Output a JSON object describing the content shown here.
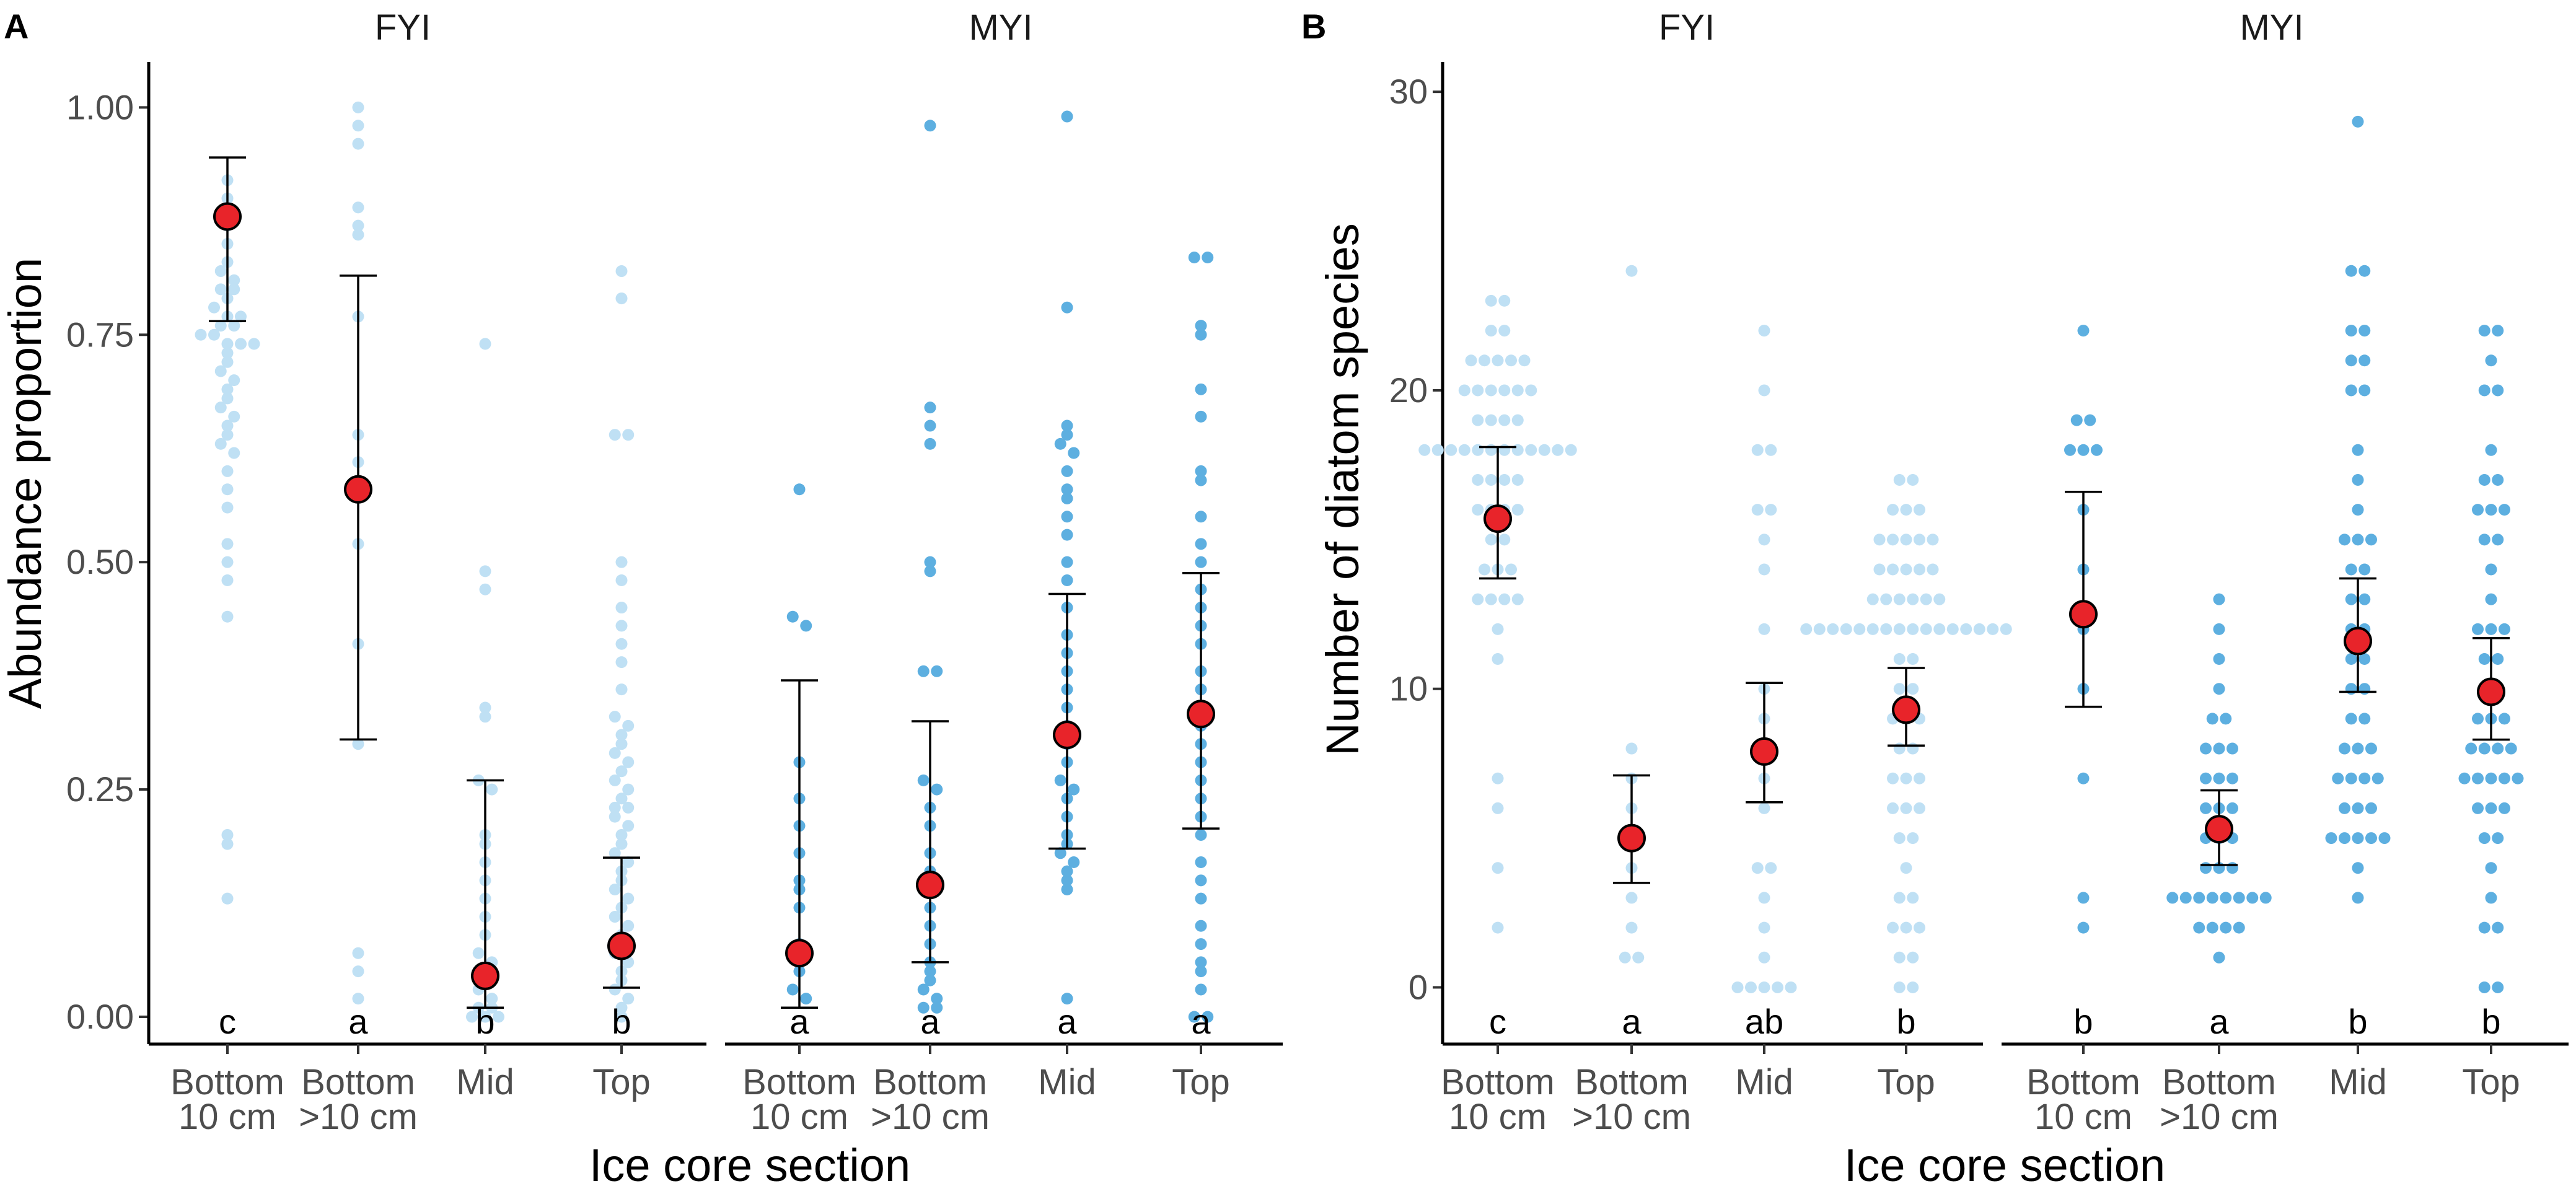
{
  "colors": {
    "fyi": "#bfe0f4",
    "myi": "#5dafe0",
    "mean": "#e8242a",
    "axis": "#000000"
  },
  "facets": [
    "FYI",
    "MYI"
  ],
  "categories": [
    "Bottom 10 cm",
    "Bottom >10 cm",
    "Mid",
    "Top"
  ],
  "category_lines": {
    "bottom10": [
      "Bottom",
      "10 cm"
    ],
    "bottom_gt10": [
      "Bottom",
      ">10 cm"
    ],
    "mid": [
      "Mid"
    ],
    "top": [
      "Top"
    ]
  },
  "xlabel": "Ice core section",
  "chart_data": [
    {
      "panel": "A",
      "type": "scatter",
      "description": "dot plot with mean ± error bars",
      "ylabel": "Abundance proportion",
      "ylim": [
        -0.03,
        1.05
      ],
      "yticks": [
        0.0,
        0.25,
        0.5,
        0.75,
        1.0
      ],
      "ytick_labels": [
        "0.00",
        "0.25",
        "0.50",
        "0.75",
        "1.00"
      ],
      "groups": [
        {
          "facet": "FYI",
          "category": "Bottom 10 cm",
          "mean": 0.88,
          "lower": 0.765,
          "upper": 0.945,
          "letter": "c",
          "points": [
            0.92,
            0.9,
            0.88,
            0.87,
            0.85,
            0.83,
            0.82,
            0.81,
            0.8,
            0.8,
            0.79,
            0.78,
            0.77,
            0.77,
            0.76,
            0.76,
            0.75,
            0.75,
            0.74,
            0.74,
            0.74,
            0.73,
            0.72,
            0.71,
            0.7,
            0.69,
            0.68,
            0.67,
            0.66,
            0.65,
            0.64,
            0.63,
            0.62,
            0.6,
            0.58,
            0.56,
            0.52,
            0.5,
            0.48,
            0.44,
            0.2,
            0.19,
            0.13
          ]
        },
        {
          "facet": "FYI",
          "category": "Bottom >10 cm",
          "mean": 0.58,
          "lower": 0.305,
          "upper": 0.815,
          "letter": "a",
          "points": [
            1.0,
            0.98,
            0.96,
            0.89,
            0.87,
            0.86,
            0.77,
            0.64,
            0.61,
            0.52,
            0.41,
            0.3,
            0.07,
            0.05,
            0.02
          ]
        },
        {
          "facet": "FYI",
          "category": "Mid",
          "mean": 0.045,
          "lower": 0.01,
          "upper": 0.26,
          "letter": "b",
          "points": [
            0.74,
            0.49,
            0.47,
            0.34,
            0.33,
            0.26,
            0.25,
            0.2,
            0.19,
            0.17,
            0.15,
            0.13,
            0.11,
            0.09,
            0.07,
            0.06,
            0.05,
            0.04,
            0.03,
            0.02,
            0.01,
            0.01,
            0.0,
            0.0,
            0.0
          ]
        },
        {
          "facet": "FYI",
          "category": "Top",
          "mean": 0.078,
          "lower": 0.032,
          "upper": 0.175,
          "letter": "b",
          "points": [
            0.82,
            0.79,
            0.64,
            0.64,
            0.5,
            0.48,
            0.45,
            0.43,
            0.41,
            0.39,
            0.36,
            0.33,
            0.32,
            0.31,
            0.3,
            0.29,
            0.28,
            0.27,
            0.26,
            0.25,
            0.24,
            0.23,
            0.23,
            0.22,
            0.21,
            0.2,
            0.19,
            0.18,
            0.17,
            0.16,
            0.15,
            0.14,
            0.13,
            0.12,
            0.11,
            0.1,
            0.09,
            0.08,
            0.07,
            0.06,
            0.05,
            0.04,
            0.03,
            0.02,
            0.01,
            0.0
          ]
        },
        {
          "facet": "MYI",
          "category": "Bottom 10 cm",
          "mean": 0.07,
          "lower": 0.01,
          "upper": 0.37,
          "letter": "a",
          "points": [
            0.58,
            0.44,
            0.43,
            0.28,
            0.24,
            0.21,
            0.18,
            0.15,
            0.14,
            0.12,
            0.08,
            0.05,
            0.03,
            0.02
          ]
        },
        {
          "facet": "MYI",
          "category": "Bottom >10 cm",
          "mean": 0.145,
          "lower": 0.06,
          "upper": 0.325,
          "letter": "a",
          "points": [
            0.98,
            0.67,
            0.65,
            0.63,
            0.5,
            0.49,
            0.38,
            0.38,
            0.26,
            0.25,
            0.23,
            0.21,
            0.18,
            0.16,
            0.14,
            0.12,
            0.1,
            0.08,
            0.06,
            0.05,
            0.04,
            0.03,
            0.02,
            0.01,
            0.01
          ]
        },
        {
          "facet": "MYI",
          "category": "Mid",
          "mean": 0.31,
          "lower": 0.185,
          "upper": 0.465,
          "letter": "a",
          "points": [
            0.99,
            0.78,
            0.65,
            0.64,
            0.63,
            0.62,
            0.6,
            0.58,
            0.57,
            0.55,
            0.53,
            0.5,
            0.48,
            0.45,
            0.42,
            0.4,
            0.38,
            0.36,
            0.34,
            0.32,
            0.3,
            0.28,
            0.26,
            0.25,
            0.24,
            0.22,
            0.2,
            0.19,
            0.18,
            0.17,
            0.16,
            0.15,
            0.14,
            0.02
          ]
        },
        {
          "facet": "MYI",
          "category": "Top",
          "mean": 0.333,
          "lower": 0.207,
          "upper": 0.488,
          "letter": "a",
          "points": [
            0.835,
            0.835,
            0.76,
            0.75,
            0.69,
            0.66,
            0.6,
            0.59,
            0.55,
            0.52,
            0.5,
            0.47,
            0.45,
            0.43,
            0.41,
            0.38,
            0.36,
            0.34,
            0.32,
            0.3,
            0.28,
            0.26,
            0.24,
            0.22,
            0.2,
            0.17,
            0.15,
            0.13,
            0.1,
            0.08,
            0.06,
            0.05,
            0.03,
            0.0,
            0.0
          ]
        }
      ]
    },
    {
      "panel": "B",
      "type": "scatter",
      "description": "dot plot with mean ± error bars",
      "ylabel": "Number of diatom species",
      "ylim": [
        -1.9,
        31
      ],
      "yticks": [
        0,
        10,
        20,
        30
      ],
      "ytick_labels": [
        "0",
        "10",
        "20",
        "30"
      ],
      "groups": [
        {
          "facet": "FYI",
          "category": "Bottom 10 cm",
          "mean": 15.7,
          "lower": 13.7,
          "upper": 18.1,
          "letter": "c",
          "points": [
            23,
            23,
            22,
            22,
            21,
            21,
            21,
            21,
            21,
            20,
            20,
            20,
            20,
            20,
            20,
            19,
            19,
            19,
            19,
            18,
            18,
            18,
            18,
            18,
            18,
            18,
            18,
            18,
            18,
            18,
            18,
            17,
            17,
            17,
            17,
            16,
            16,
            16,
            16,
            15,
            15,
            14,
            14,
            14,
            13,
            13,
            13,
            13,
            12,
            11,
            7,
            6,
            4,
            2
          ]
        },
        {
          "facet": "FYI",
          "category": "Bottom >10 cm",
          "mean": 5.0,
          "lower": 3.5,
          "upper": 7.1,
          "letter": "a",
          "points": [
            24,
            8,
            7,
            6,
            5,
            4,
            3,
            2,
            1,
            1
          ]
        },
        {
          "facet": "FYI",
          "category": "Mid",
          "mean": 7.9,
          "lower": 6.2,
          "upper": 10.2,
          "letter": "ab",
          "points": [
            22,
            20,
            18,
            18,
            16,
            16,
            15,
            14,
            12,
            10,
            9,
            8,
            7,
            6,
            4,
            4,
            3,
            2,
            1,
            0,
            0,
            0,
            0,
            0
          ]
        },
        {
          "facet": "FYI",
          "category": "Top",
          "mean": 9.3,
          "lower": 8.1,
          "upper": 10.7,
          "letter": "b",
          "points": [
            17,
            17,
            16,
            16,
            16,
            15,
            15,
            15,
            15,
            15,
            14,
            14,
            14,
            14,
            14,
            13,
            13,
            13,
            13,
            13,
            13,
            12,
            12,
            12,
            12,
            12,
            12,
            12,
            12,
            12,
            12,
            12,
            12,
            12,
            12,
            12,
            12,
            11,
            11,
            10,
            10,
            9,
            9,
            9,
            8,
            8,
            7,
            7,
            7,
            6,
            6,
            6,
            5,
            5,
            4,
            3,
            3,
            2,
            2,
            2,
            1,
            1,
            0,
            0
          ]
        },
        {
          "facet": "MYI",
          "category": "Bottom 10 cm",
          "mean": 12.5,
          "lower": 9.4,
          "upper": 16.6,
          "letter": "b",
          "points": [
            22,
            19,
            19,
            18,
            18,
            18,
            16,
            14,
            12,
            10,
            7,
            3,
            2
          ]
        },
        {
          "facet": "MYI",
          "category": "Bottom >10 cm",
          "mean": 5.3,
          "lower": 4.1,
          "upper": 6.6,
          "letter": "a",
          "points": [
            13,
            12,
            11,
            10,
            9,
            9,
            8,
            8,
            8,
            7,
            7,
            7,
            6,
            6,
            6,
            5,
            5,
            5,
            4,
            4,
            4,
            3,
            3,
            3,
            3,
            3,
            3,
            3,
            3,
            2,
            2,
            2,
            2,
            1
          ]
        },
        {
          "facet": "MYI",
          "category": "Mid",
          "mean": 11.6,
          "lower": 9.9,
          "upper": 13.7,
          "letter": "b",
          "points": [
            29,
            24,
            24,
            22,
            22,
            21,
            21,
            20,
            20,
            18,
            17,
            16,
            15,
            15,
            15,
            14,
            14,
            13,
            13,
            12,
            12,
            11,
            11,
            10,
            10,
            9,
            9,
            8,
            8,
            8,
            7,
            7,
            7,
            7,
            6,
            6,
            6,
            5,
            5,
            5,
            5,
            5,
            4,
            3
          ]
        },
        {
          "facet": "MYI",
          "category": "Top",
          "mean": 9.9,
          "lower": 8.3,
          "upper": 11.7,
          "letter": "b",
          "points": [
            22,
            22,
            21,
            20,
            20,
            18,
            17,
            17,
            16,
            16,
            16,
            15,
            15,
            14,
            13,
            12,
            12,
            12,
            11,
            11,
            10,
            10,
            9,
            9,
            9,
            8,
            8,
            8,
            8,
            7,
            7,
            7,
            7,
            7,
            6,
            6,
            6,
            5,
            5,
            4,
            3,
            2,
            2,
            0,
            0
          ]
        }
      ]
    }
  ]
}
